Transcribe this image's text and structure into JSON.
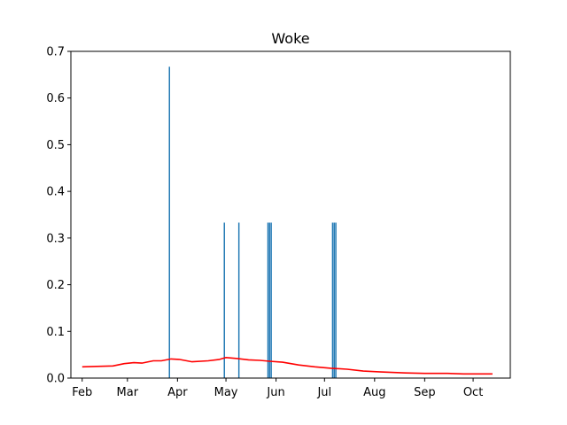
{
  "chart_data": {
    "type": "bar",
    "title": "Woke",
    "xlabel": "",
    "ylabel": "",
    "ylim": [
      0,
      0.7
    ],
    "xlim": [
      "2019-01-25",
      "2019-10-24"
    ],
    "y_ticks": [
      "0.0",
      "0.1",
      "0.2",
      "0.3",
      "0.4",
      "0.5",
      "0.6",
      "0.7"
    ],
    "x_ticks": [
      {
        "label": "Feb",
        "date": "2019-02-01"
      },
      {
        "label": "Mar",
        "date": "2019-03-01"
      },
      {
        "label": "Apr",
        "date": "2019-04-01"
      },
      {
        "label": "May",
        "date": "2019-05-01"
      },
      {
        "label": "Jun",
        "date": "2019-06-01"
      },
      {
        "label": "Jul",
        "date": "2019-07-01"
      },
      {
        "label": "Aug",
        "date": "2019-08-01"
      },
      {
        "label": "Sep",
        "date": "2019-09-01"
      },
      {
        "label": "Oct",
        "date": "2019-10-01"
      }
    ],
    "grid": false,
    "series": [
      {
        "kind": "bar",
        "color": "#1f77b4",
        "points": [
          {
            "x": "2019-03-27",
            "y": 0.667
          },
          {
            "x": "2019-04-30",
            "y": 0.333
          },
          {
            "x": "2019-05-09",
            "y": 0.333
          },
          {
            "x": "2019-05-27",
            "y": 0.333
          },
          {
            "x": "2019-05-28",
            "y": 0.333
          },
          {
            "x": "2019-05-29",
            "y": 0.333
          },
          {
            "x": "2019-07-06",
            "y": 0.333
          },
          {
            "x": "2019-07-07",
            "y": 0.333
          },
          {
            "x": "2019-07-08",
            "y": 0.333
          }
        ]
      },
      {
        "kind": "line",
        "color": "#ff0000",
        "points": [
          {
            "x": "2019-02-01",
            "y": 0.024
          },
          {
            "x": "2019-02-10",
            "y": 0.025
          },
          {
            "x": "2019-02-20",
            "y": 0.026
          },
          {
            "x": "2019-02-27",
            "y": 0.031
          },
          {
            "x": "2019-03-05",
            "y": 0.033
          },
          {
            "x": "2019-03-10",
            "y": 0.032
          },
          {
            "x": "2019-03-17",
            "y": 0.037
          },
          {
            "x": "2019-03-22",
            "y": 0.037
          },
          {
            "x": "2019-03-28",
            "y": 0.041
          },
          {
            "x": "2019-04-02",
            "y": 0.04
          },
          {
            "x": "2019-04-10",
            "y": 0.035
          },
          {
            "x": "2019-04-20",
            "y": 0.037
          },
          {
            "x": "2019-04-27",
            "y": 0.04
          },
          {
            "x": "2019-05-01",
            "y": 0.044
          },
          {
            "x": "2019-05-08",
            "y": 0.042
          },
          {
            "x": "2019-05-15",
            "y": 0.039
          },
          {
            "x": "2019-05-22",
            "y": 0.038
          },
          {
            "x": "2019-05-28",
            "y": 0.036
          },
          {
            "x": "2019-06-05",
            "y": 0.034
          },
          {
            "x": "2019-06-15",
            "y": 0.028
          },
          {
            "x": "2019-06-25",
            "y": 0.024
          },
          {
            "x": "2019-07-05",
            "y": 0.021
          },
          {
            "x": "2019-07-15",
            "y": 0.019
          },
          {
            "x": "2019-07-25",
            "y": 0.015
          },
          {
            "x": "2019-08-05",
            "y": 0.013
          },
          {
            "x": "2019-08-20",
            "y": 0.011
          },
          {
            "x": "2019-09-01",
            "y": 0.01
          },
          {
            "x": "2019-09-15",
            "y": 0.01
          },
          {
            "x": "2019-09-25",
            "y": 0.009
          },
          {
            "x": "2019-10-05",
            "y": 0.009
          },
          {
            "x": "2019-10-13",
            "y": 0.009
          }
        ]
      }
    ]
  }
}
